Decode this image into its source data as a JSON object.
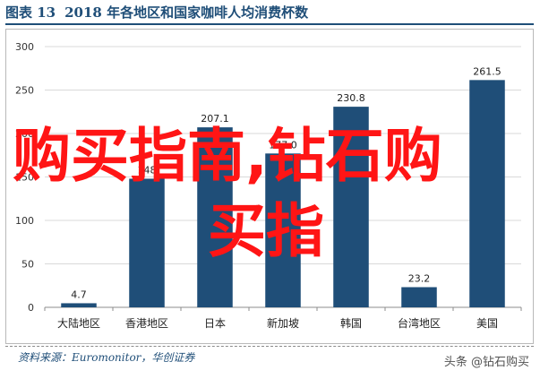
{
  "header": {
    "figure_label": "图表 13",
    "title": "2018 年各地区和国家咖啡人均消费杯数"
  },
  "chart_data": {
    "type": "bar",
    "categories": [
      "大陆地区",
      "香港地区",
      "日本",
      "新加坡",
      "韩国",
      "台湾地区",
      "美国"
    ],
    "values": [
      4.7,
      148,
      207.1,
      177.0,
      230.8,
      23.2,
      261.5
    ],
    "value_labels": [
      "4.7",
      "148",
      "207.1",
      "177.0",
      "230.8",
      "23.2",
      "261.5"
    ],
    "ylim": [
      0,
      300
    ],
    "yticks": [
      "0",
      "50",
      "100",
      "150",
      "200",
      "250",
      "300"
    ],
    "grid": true,
    "bar_color": "#1f4e78",
    "title": "",
    "xlabel": "",
    "ylabel": ""
  },
  "footer": {
    "source": "资料来源：Euromonitor，华创证券",
    "brand": "头条 @钻石购买"
  },
  "overlay": {
    "line1": "购买指南,钻石购",
    "line2": "买指",
    "color": "#ff1515"
  }
}
